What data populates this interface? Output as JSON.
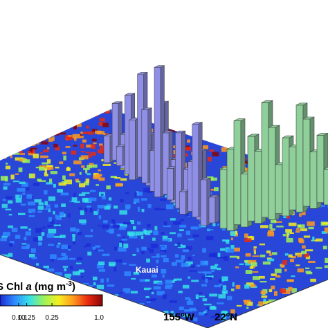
{
  "chart_data": {
    "type": "heatmap",
    "description_mode": "3d-surface-with-bars",
    "colorbar": {
      "title_prefix": "DIS Chl ",
      "title_var": "a",
      "title_unit": " (mg m",
      "title_exp": "-3",
      "title_suffix": ")",
      "ticks": [
        "0.10",
        "0.125",
        "0.25",
        "1.0"
      ],
      "tick_values": [
        0.1,
        0.125,
        0.25,
        1.0
      ],
      "colors": [
        "#1b2bd6",
        "#2e8bff",
        "#35e0e8",
        "#9cf25a",
        "#f4f020",
        "#ff9a1e",
        "#ea2a10",
        "#8a0508"
      ]
    },
    "axes": {
      "lon_label": "155ºW",
      "lat_label": "22ºN"
    },
    "annotation": "Kauai",
    "series": [
      {
        "name": "",
        "color": "#8f8fe8",
        "values": [
          3.2,
          6.8,
          4.1,
          2.3,
          9.5,
          5.6,
          7.2,
          12.4,
          6.1,
          8.8,
          4.9,
          10.3,
          15.6,
          7.4,
          5.2,
          3.8,
          9.1,
          4.4,
          2.7,
          6.0,
          8.3,
          11.2,
          5.5,
          3.1
        ]
      },
      {
        "name": "",
        "color": "#8ecf9a",
        "values": [
          7.1,
          9.8,
          12.5,
          6.4,
          10.2,
          8.7,
          13.8,
          11.1,
          5.9,
          9.4,
          7.6,
          12.9,
          10.5,
          6.8,
          8.1,
          4.3
        ]
      }
    ]
  }
}
